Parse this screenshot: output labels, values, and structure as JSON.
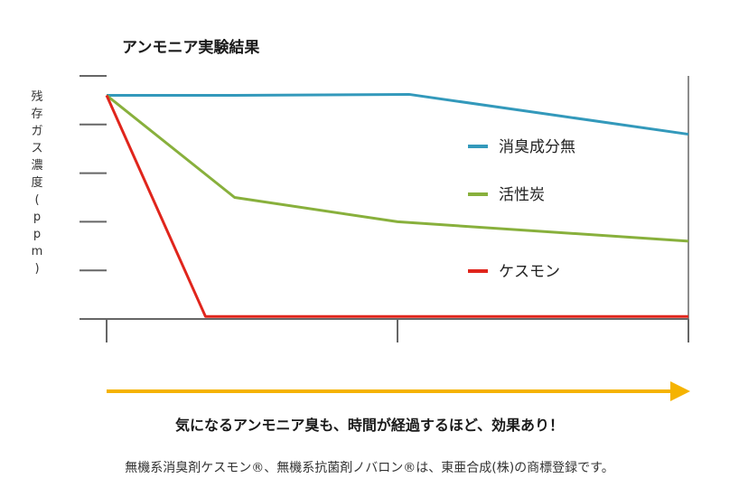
{
  "chart_data": {
    "type": "line",
    "title": "アンモニア実験結果",
    "ylabel": [
      "残",
      "存",
      "ガ",
      "ス",
      "濃",
      "度",
      "(",
      "p",
      "p",
      "m",
      ")"
    ],
    "xlabel": "",
    "x": [
      0,
      0.5,
      1
    ],
    "ylim": [
      0,
      5
    ],
    "y_ticks": 5,
    "x_ticks": 3,
    "grid": false,
    "legend_position": "right",
    "series": [
      {
        "name": "消臭成分無",
        "color": "#3399bb",
        "points": [
          [
            0,
            4.6
          ],
          [
            0.22,
            4.6
          ],
          [
            0.52,
            4.62
          ],
          [
            1.0,
            3.8
          ]
        ]
      },
      {
        "name": "活性炭",
        "color": "#88b03c",
        "points": [
          [
            0,
            4.6
          ],
          [
            0.22,
            2.5
          ],
          [
            0.5,
            2.0
          ],
          [
            1.0,
            1.6
          ]
        ]
      },
      {
        "name": "ケスモン",
        "color": "#e0251c",
        "points": [
          [
            0,
            4.6
          ],
          [
            0.17,
            0.05
          ],
          [
            1.0,
            0.05
          ]
        ]
      }
    ]
  },
  "arrow_color": "#f5b300",
  "caption": "気になるアンモニア臭も、時間が経過するほど、効果あり！",
  "footnote": "無機系消臭剤ケスモン®、無機系抗菌剤ノバロン®は、東亜合成(株)の商標登録です。"
}
